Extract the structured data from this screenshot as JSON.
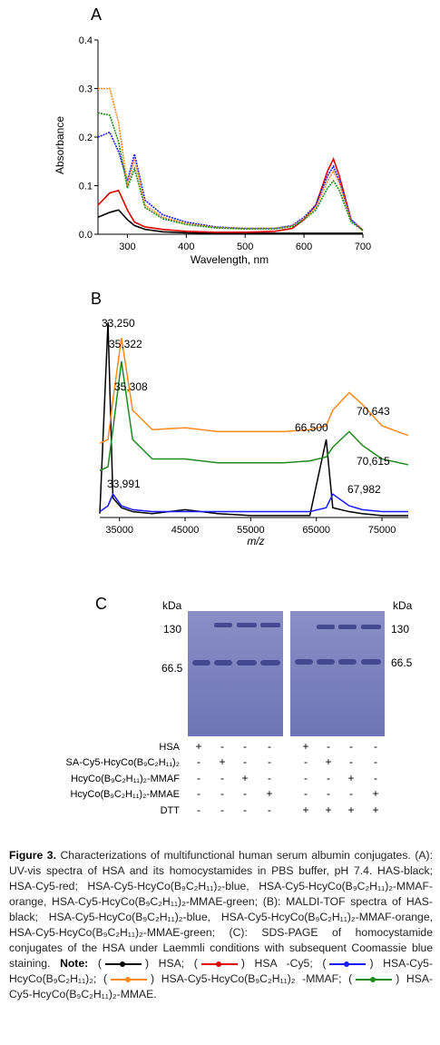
{
  "panel_letters": {
    "a": "A",
    "b": "B",
    "c": "C"
  },
  "chart_data": [
    {
      "type": "line",
      "panel": "A",
      "xlabel": "Wavelength, nm",
      "ylabel": "Absorbance",
      "xlim": [
        250,
        700
      ],
      "ylim": [
        0,
        0.4
      ],
      "xticks": [
        "300",
        "400",
        "500",
        "600",
        "700"
      ],
      "yticks": [
        "0.0",
        "0.1",
        "0.2",
        "0.3",
        "0.4"
      ],
      "x": [
        250,
        270,
        285,
        300,
        312,
        330,
        360,
        400,
        450,
        500,
        550,
        580,
        600,
        620,
        640,
        650,
        660,
        680,
        700
      ],
      "series": [
        {
          "color": "#000000",
          "values": [
            0.035,
            0.045,
            0.05,
            0.03,
            0.018,
            0.01,
            0.005,
            0.003,
            0.002,
            0.002,
            0.002,
            0.002,
            0.002,
            0.002,
            0.002,
            0.002,
            0.002,
            0.002,
            0.002
          ]
        },
        {
          "color": "#e00000",
          "values": [
            0.06,
            0.085,
            0.09,
            0.05,
            0.025,
            0.015,
            0.01,
            0.006,
            0.004,
            0.004,
            0.006,
            0.012,
            0.03,
            0.06,
            0.13,
            0.155,
            0.12,
            0.03,
            0.008
          ]
        },
        {
          "color": "#1a1aff",
          "values": [
            0.2,
            0.21,
            0.17,
            0.11,
            0.165,
            0.07,
            0.04,
            0.025,
            0.015,
            0.012,
            0.012,
            0.018,
            0.035,
            0.06,
            0.12,
            0.14,
            0.11,
            0.03,
            0.008
          ]
        },
        {
          "color": "#ff8a1a",
          "values": [
            0.3,
            0.3,
            0.23,
            0.1,
            0.155,
            0.06,
            0.035,
            0.022,
            0.014,
            0.012,
            0.012,
            0.017,
            0.032,
            0.055,
            0.11,
            0.13,
            0.105,
            0.028,
            0.008
          ]
        },
        {
          "color": "#1f8a1f",
          "values": [
            0.25,
            0.245,
            0.19,
            0.095,
            0.135,
            0.055,
            0.032,
            0.02,
            0.013,
            0.011,
            0.011,
            0.016,
            0.03,
            0.05,
            0.095,
            0.11,
            0.09,
            0.025,
            0.008
          ]
        }
      ]
    },
    {
      "type": "line",
      "panel": "B",
      "xlabel": "m/z",
      "xlim": [
        32000,
        79000
      ],
      "xticks": [
        "35000",
        "45000",
        "55000",
        "65000",
        "75000"
      ],
      "annotations": [
        "33,250",
        "35,322",
        "35,308",
        "33,991",
        "66,500",
        "70,643",
        "70,615",
        "67,982"
      ],
      "x": [
        32000,
        33250,
        34000,
        35300,
        37000,
        40000,
        45000,
        50000,
        55000,
        60000,
        64000,
        66500,
        67500,
        70000,
        72000,
        75000,
        79000
      ],
      "series": [
        {
          "color": "#000000",
          "values": [
            0.02,
            1.0,
            0.1,
            0.05,
            0.03,
            0.02,
            0.04,
            0.02,
            0.01,
            0.01,
            0.01,
            0.4,
            0.05,
            0.03,
            0.02,
            0.01,
            0.01
          ]
        },
        {
          "color": "#1a1aff",
          "values": [
            0.03,
            0.06,
            0.12,
            0.06,
            0.04,
            0.03,
            0.03,
            0.03,
            0.03,
            0.03,
            0.03,
            0.05,
            0.12,
            0.06,
            0.04,
            0.03,
            0.03
          ]
        },
        {
          "color": "#1f8a1f",
          "values": [
            0.24,
            0.26,
            0.45,
            0.8,
            0.4,
            0.3,
            0.3,
            0.28,
            0.28,
            0.28,
            0.29,
            0.31,
            0.36,
            0.44,
            0.37,
            0.3,
            0.27
          ]
        },
        {
          "color": "#ff8a1a",
          "values": [
            0.38,
            0.4,
            0.6,
            0.92,
            0.55,
            0.45,
            0.46,
            0.44,
            0.44,
            0.44,
            0.45,
            0.47,
            0.55,
            0.64,
            0.58,
            0.47,
            0.42
          ]
        }
      ]
    }
  ],
  "gel": {
    "kda_label": "kDa",
    "markers": [
      "130",
      "66.5"
    ],
    "row_labels": [
      "HSA",
      "SA-Cy5-HcyCo(B₉C₂H₁₁)₂",
      "HcyCo(B₉C₂H₁₁)₂-MMAF",
      "HcyCo(B₉C₂H₁₁)₂-MMAE",
      "DTT"
    ],
    "grid": [
      [
        "+",
        "-",
        "-",
        "-",
        "+",
        "-",
        "-",
        "-"
      ],
      [
        "-",
        "+",
        "-",
        "-",
        "-",
        "+",
        "-",
        "-"
      ],
      [
        "-",
        "-",
        "+",
        "-",
        "-",
        "-",
        "+",
        "-"
      ],
      [
        "-",
        "-",
        "-",
        "+",
        "-",
        "-",
        "-",
        "+"
      ],
      [
        "-",
        "-",
        "-",
        "-",
        "+",
        "+",
        "+",
        "+"
      ]
    ]
  },
  "caption": {
    "lead": "Figure 3.",
    "text1": " Characterizations of multifunctional human serum albumin conjugates. (A): UV-vis spectra of HSA and its homocystamides in PBS buffer, pH 7.4. HAS-black; HSA-Cy5-red; HSA-Cy5-HcyCo(B₉C₂H₁₁)₂-blue, HSA-Cy5-HcyCo(B₉C₂H₁₁)₂-MMAF-orange, HSA-Cy5-HcyCo(B₉C₂H₁₁)₂-MMAE-green; (B): MALDI-TOF spectra of HAS-black; HSA-Cy5-HcyCo(B₉C₂H₁₁)₂-blue, HSA-Cy5-HcyCo(B₉C₂H₁₁)₂-MMAF-orange, HSA-Cy5-HcyCo(B₉C₂H₁₁)₂-MMAE-green; (C): SDS-PAGE of homocystamide conjugates of the HSA under Laemmli conditions with subsequent Coomassie blue staining. ",
    "note": "Note:",
    "legend": [
      {
        "label": "HSA;",
        "color": "#000000"
      },
      {
        "label": "HSA -Cy5;",
        "color": "#e00000"
      },
      {
        "label": "HSA-Cy5-HcyCo(B₉C₂H₁₁)₂;",
        "color": "#1a1aff"
      },
      {
        "label": "HSA-Cy5-HcyCo(B₉C₂H₁₁)₂ -MMAF;",
        "color": "#ff8a1a"
      },
      {
        "label": "HSA-Cy5-HcyCo(B₉C₂H₁₁)₂-MMAE.",
        "color": "#1f8a1f"
      }
    ]
  }
}
